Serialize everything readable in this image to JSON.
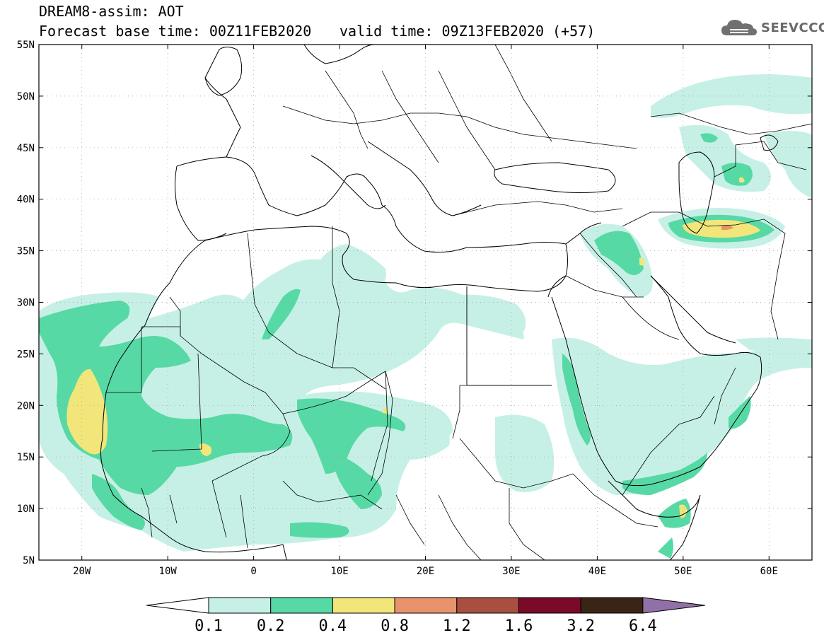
{
  "title": {
    "line1": "DREAM8-assim: AOT",
    "line2": "Forecast base time: 00Z11FEB2020",
    "valid": "valid time: 09Z13FEB2020 (+57)"
  },
  "logo": {
    "text": "SEEVCCC",
    "icon": "cloud-icon"
  },
  "map": {
    "lat_labels": [
      "55N",
      "50N",
      "45N",
      "40N",
      "35N",
      "30N",
      "25N",
      "20N",
      "15N",
      "10N",
      "5N"
    ],
    "lon_labels": [
      "20W",
      "10W",
      "0",
      "10E",
      "20E",
      "30E",
      "40E",
      "50E",
      "60E"
    ],
    "lat_range": [
      5,
      55
    ],
    "lon_range": [
      -25,
      65
    ],
    "variable": "AOT"
  },
  "colorbar": {
    "levels": [
      "0.1",
      "0.2",
      "0.4",
      "0.8",
      "1.2",
      "1.6",
      "3.2",
      "6.4"
    ],
    "colors": [
      "#ffffff",
      "#c6f0e6",
      "#57d9a5",
      "#f2e67a",
      "#e8936b",
      "#a94f40",
      "#7a0a28",
      "#3a2415",
      "#9170a8"
    ]
  },
  "palette": {
    "c1": "#c6f0e6",
    "c2": "#57d9a5",
    "c3": "#f2e67a",
    "c4": "#e8936b"
  }
}
